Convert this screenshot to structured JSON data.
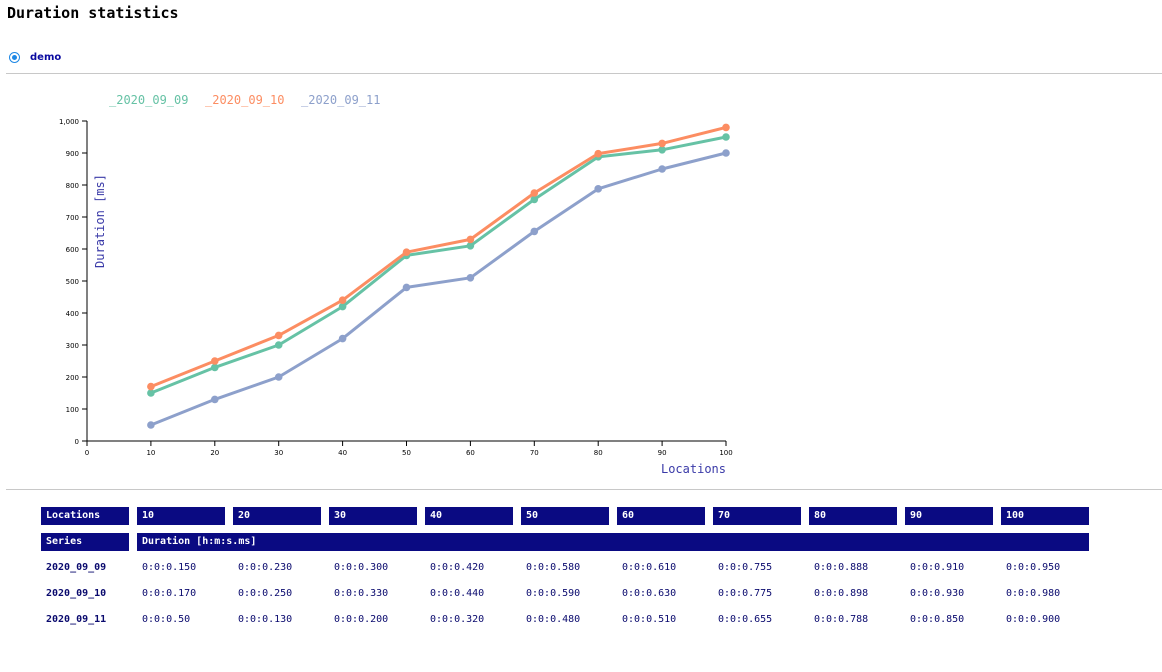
{
  "page": {
    "title": "Duration statistics"
  },
  "selector": {
    "label": "demo",
    "selected": true,
    "accent": "#1e88e5"
  },
  "chart_data": {
    "type": "line",
    "x": [
      10,
      20,
      30,
      40,
      50,
      60,
      70,
      80,
      90,
      100
    ],
    "xlabel": "Locations",
    "ylabel": "Duration [ms]",
    "xlim": [
      0,
      100
    ],
    "ylim": [
      0,
      1000
    ],
    "xticks": [
      "0",
      "10",
      "20",
      "30",
      "40",
      "50",
      "60",
      "70",
      "80",
      "90",
      "100"
    ],
    "yticks": [
      "0",
      "100",
      "200",
      "300",
      "400",
      "500",
      "600",
      "700",
      "800",
      "900",
      "1,000"
    ],
    "grid": false,
    "legend_position": "top-left",
    "series": [
      {
        "name": "_2020_09_09",
        "color": "#66c2a5",
        "values": [
          150,
          230,
          300,
          420,
          580,
          610,
          755,
          888,
          910,
          950
        ]
      },
      {
        "name": "_2020_09_10",
        "color": "#fc8d62",
        "values": [
          170,
          250,
          330,
          440,
          590,
          630,
          775,
          898,
          930,
          980
        ]
      },
      {
        "name": "_2020_09_11",
        "color": "#8da0cb",
        "values": [
          50,
          130,
          200,
          320,
          480,
          510,
          655,
          788,
          850,
          900
        ]
      }
    ]
  },
  "table": {
    "locations_header": "Locations",
    "locations": [
      "10",
      "20",
      "30",
      "40",
      "50",
      "60",
      "70",
      "80",
      "90",
      "100"
    ],
    "series_header": "Series",
    "duration_header": "Duration [h:m:s.ms]",
    "rows": [
      {
        "series": "2020_09_09",
        "values": [
          "0:0:0.150",
          "0:0:0.230",
          "0:0:0.300",
          "0:0:0.420",
          "0:0:0.580",
          "0:0:0.610",
          "0:0:0.755",
          "0:0:0.888",
          "0:0:0.910",
          "0:0:0.950"
        ]
      },
      {
        "series": "2020_09_10",
        "values": [
          "0:0:0.170",
          "0:0:0.250",
          "0:0:0.330",
          "0:0:0.440",
          "0:0:0.590",
          "0:0:0.630",
          "0:0:0.775",
          "0:0:0.898",
          "0:0:0.930",
          "0:0:0.980"
        ]
      },
      {
        "series": "2020_09_11",
        "values": [
          "0:0:0.50",
          "0:0:0.130",
          "0:0:0.200",
          "0:0:0.320",
          "0:0:0.480",
          "0:0:0.510",
          "0:0:0.655",
          "0:0:0.788",
          "0:0:0.850",
          "0:0:0.900"
        ]
      }
    ]
  }
}
